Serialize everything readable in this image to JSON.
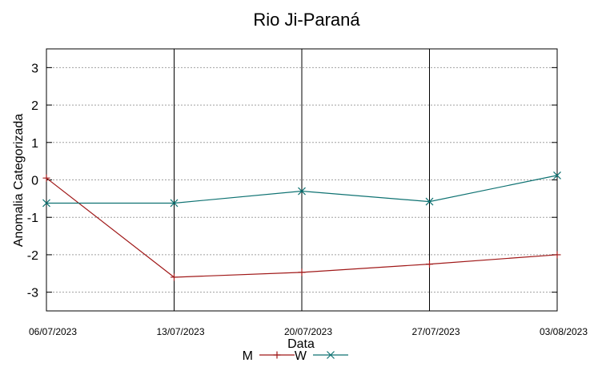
{
  "chart_data": {
    "type": "line",
    "title": "Rio Ji-Paraná",
    "xlabel": "Data",
    "ylabel": "Anomalia Categorizada",
    "categories": [
      "06/07/2023",
      "13/07/2023",
      "20/07/2023",
      "27/07/2023",
      "03/08/2023"
    ],
    "ylim": [
      -3.5,
      3.5
    ],
    "yticks": [
      3,
      2,
      1,
      0,
      -1,
      -2,
      -3
    ],
    "grid": true,
    "legend_position": "bottom",
    "series": [
      {
        "name": "M",
        "color": "#a01818",
        "marker": "plus",
        "values": [
          0.05,
          -2.6,
          -2.47,
          -2.25,
          -2.0
        ]
      },
      {
        "name": "W",
        "color": "#0e7272",
        "marker": "cross",
        "values": [
          -0.62,
          -0.62,
          -0.3,
          -0.58,
          0.12
        ]
      }
    ]
  }
}
